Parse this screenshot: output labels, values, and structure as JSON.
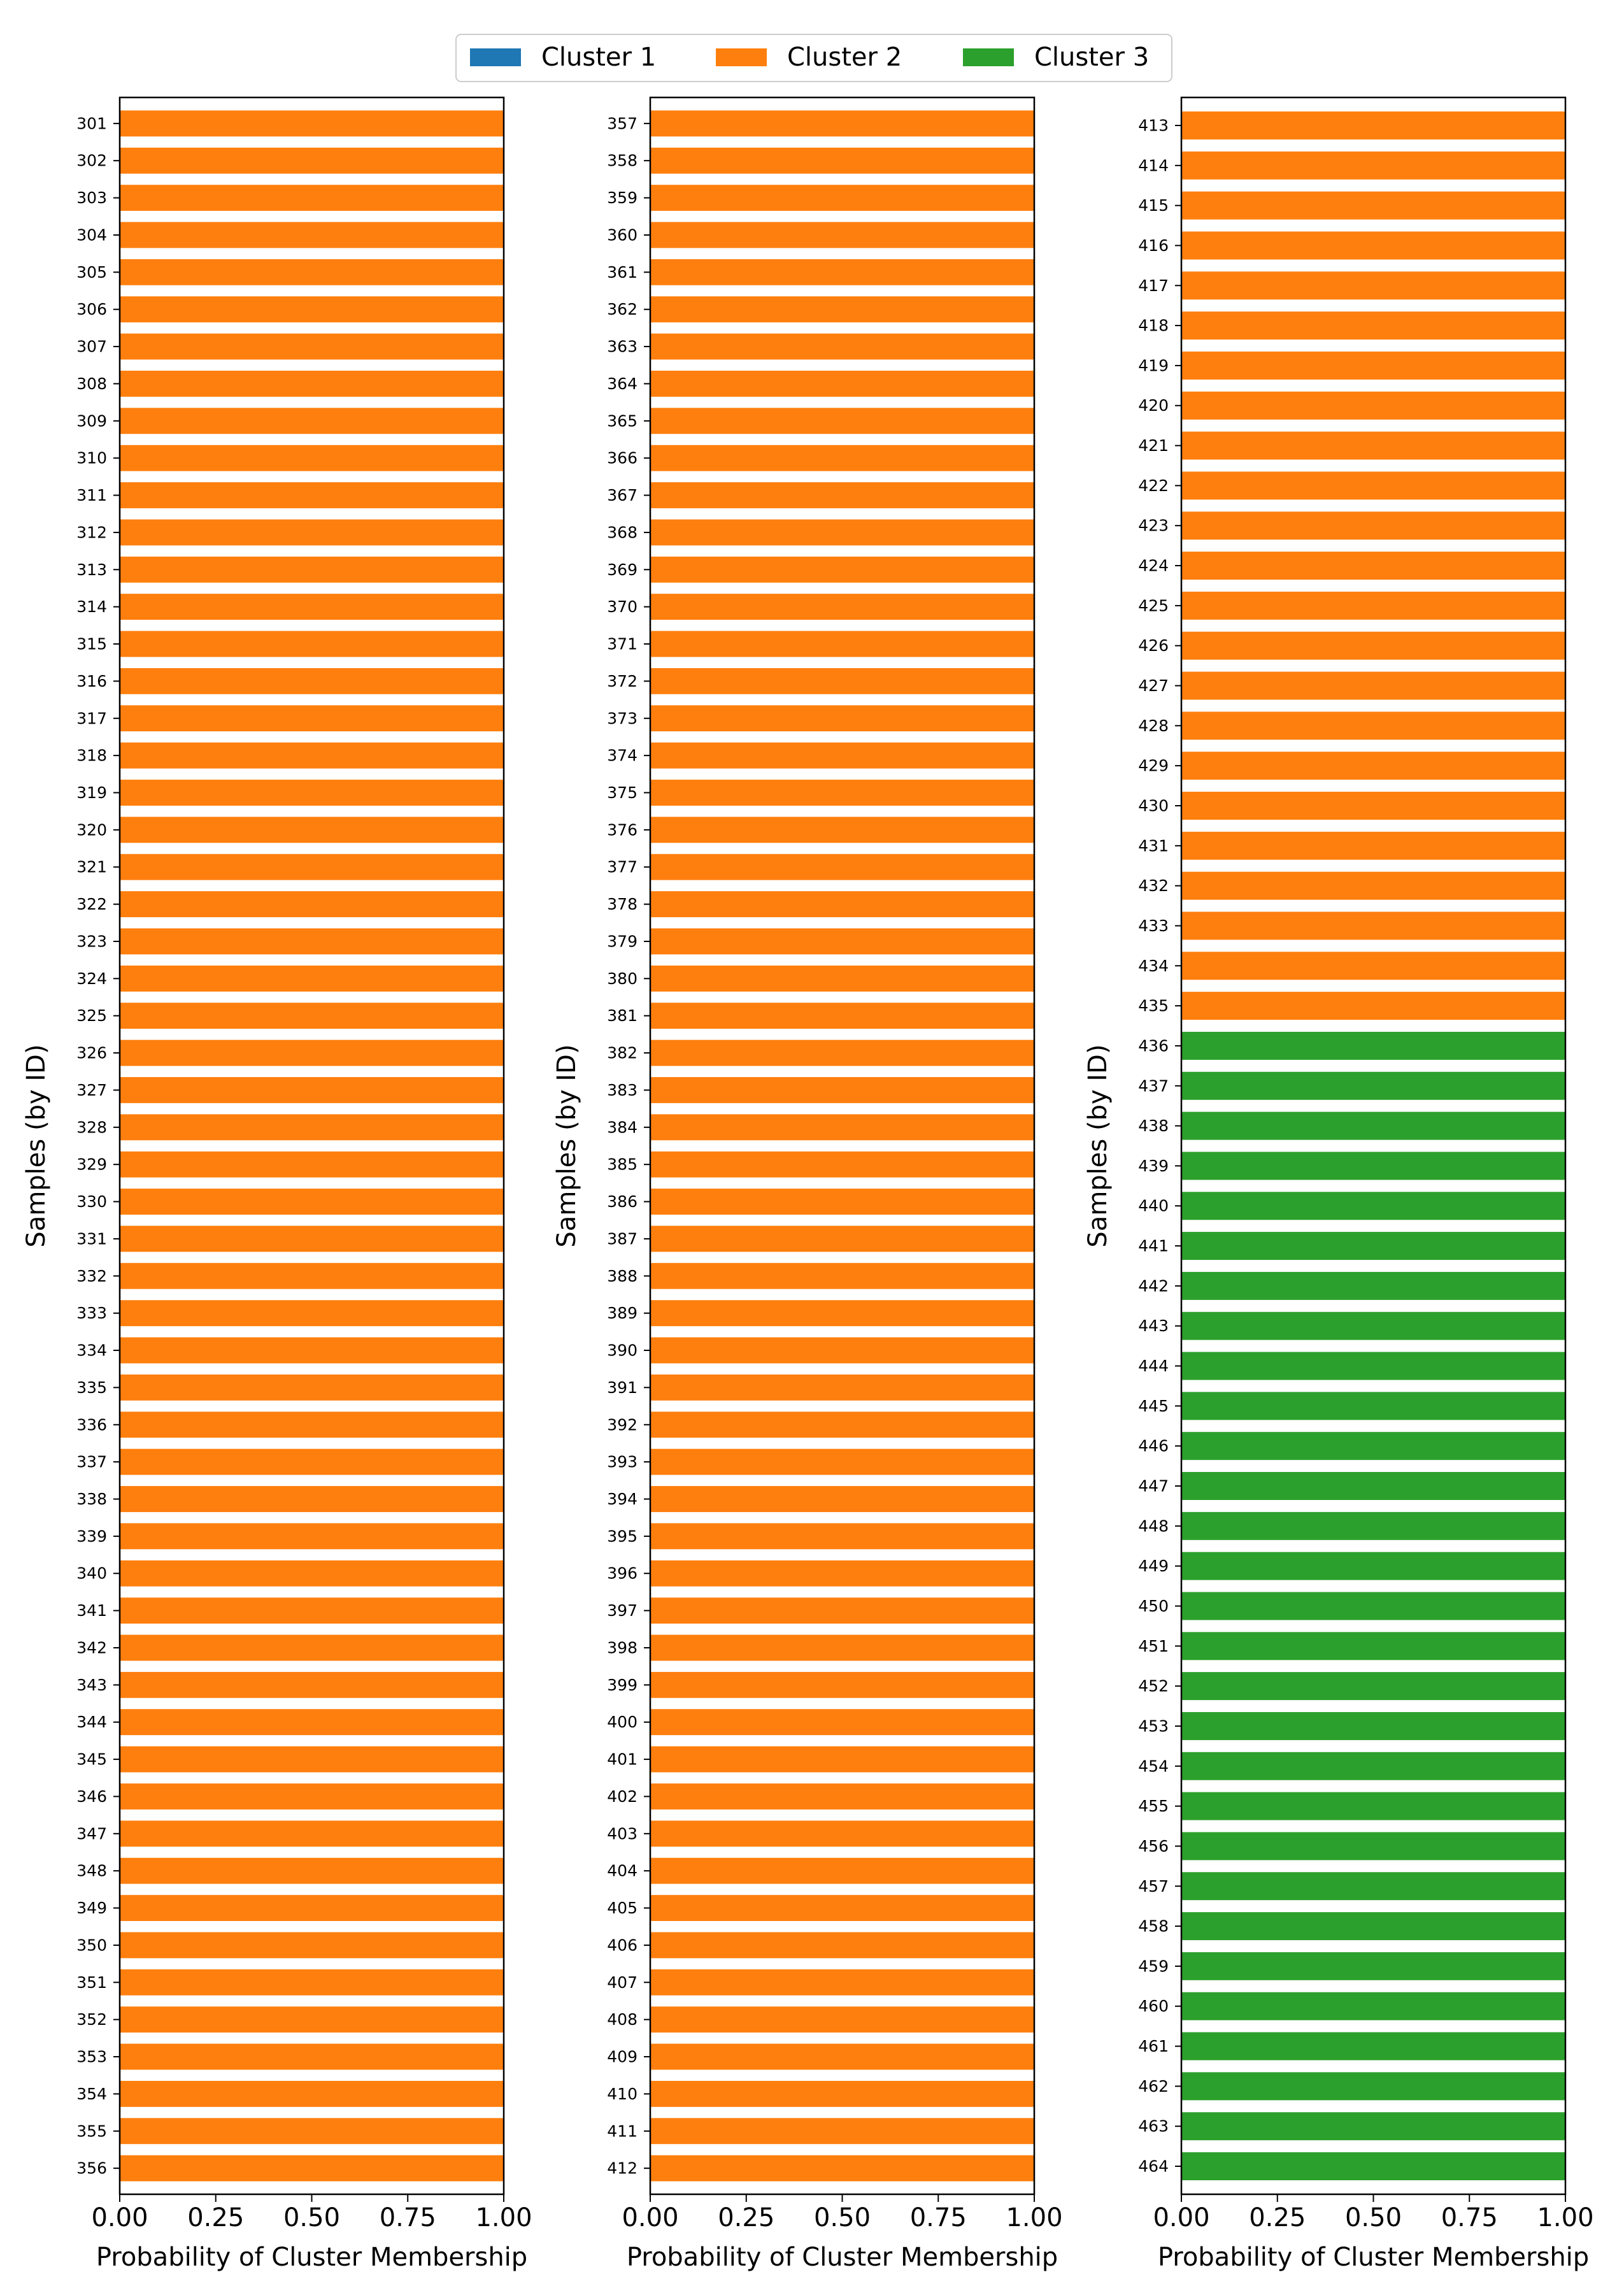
{
  "chart_data": {
    "type": "bar",
    "orientation": "horizontal",
    "stacked": true,
    "legend": {
      "placement": "top-center",
      "entries": [
        {
          "name": "Cluster 1",
          "color": "#1f77b4"
        },
        {
          "name": "Cluster 2",
          "color": "#ff7f0e"
        },
        {
          "name": "Cluster 3",
          "color": "#2ca02c"
        }
      ]
    },
    "xlim": [
      0,
      1
    ],
    "x_ticks": [
      "0.00",
      "0.25",
      "0.50",
      "0.75",
      "1.00"
    ],
    "panels": [
      {
        "xlabel": "Probability of Cluster Membership",
        "ylabel": "Samples (by ID)",
        "samples": [
          "301",
          "302",
          "303",
          "304",
          "305",
          "306",
          "307",
          "308",
          "309",
          "310",
          "311",
          "312",
          "313",
          "314",
          "315",
          "316",
          "317",
          "318",
          "319",
          "320",
          "321",
          "322",
          "323",
          "324",
          "325",
          "326",
          "327",
          "328",
          "329",
          "330",
          "331",
          "332",
          "333",
          "334",
          "335",
          "336",
          "337",
          "338",
          "339",
          "340",
          "341",
          "342",
          "343",
          "344",
          "345",
          "346",
          "347",
          "348",
          "349",
          "350",
          "351",
          "352",
          "353",
          "354",
          "355",
          "356"
        ],
        "series": [
          {
            "name": "Cluster 1",
            "values": [
              0,
              0,
              0,
              0,
              0,
              0,
              0,
              0,
              0,
              0,
              0,
              0,
              0,
              0,
              0,
              0,
              0,
              0,
              0,
              0,
              0,
              0,
              0,
              0,
              0,
              0,
              0,
              0,
              0,
              0,
              0,
              0,
              0,
              0,
              0,
              0,
              0,
              0,
              0,
              0,
              0,
              0,
              0,
              0,
              0,
              0,
              0,
              0,
              0,
              0,
              0,
              0,
              0,
              0,
              0,
              0
            ]
          },
          {
            "name": "Cluster 2",
            "values": [
              1,
              1,
              1,
              1,
              1,
              1,
              1,
              1,
              1,
              1,
              1,
              1,
              1,
              1,
              1,
              1,
              1,
              1,
              1,
              1,
              1,
              1,
              1,
              1,
              1,
              1,
              1,
              1,
              1,
              1,
              1,
              1,
              1,
              1,
              1,
              1,
              1,
              1,
              1,
              1,
              1,
              1,
              1,
              1,
              1,
              1,
              1,
              1,
              1,
              1,
              1,
              1,
              1,
              1,
              1,
              1
            ]
          },
          {
            "name": "Cluster 3",
            "values": [
              0,
              0,
              0,
              0,
              0,
              0,
              0,
              0,
              0,
              0,
              0,
              0,
              0,
              0,
              0,
              0,
              0,
              0,
              0,
              0,
              0,
              0,
              0,
              0,
              0,
              0,
              0,
              0,
              0,
              0,
              0,
              0,
              0,
              0,
              0,
              0,
              0,
              0,
              0,
              0,
              0,
              0,
              0,
              0,
              0,
              0,
              0,
              0,
              0,
              0,
              0,
              0,
              0,
              0,
              0,
              0
            ]
          }
        ]
      },
      {
        "xlabel": "Probability of Cluster Membership",
        "ylabel": "Samples (by ID)",
        "samples": [
          "357",
          "358",
          "359",
          "360",
          "361",
          "362",
          "363",
          "364",
          "365",
          "366",
          "367",
          "368",
          "369",
          "370",
          "371",
          "372",
          "373",
          "374",
          "375",
          "376",
          "377",
          "378",
          "379",
          "380",
          "381",
          "382",
          "383",
          "384",
          "385",
          "386",
          "387",
          "388",
          "389",
          "390",
          "391",
          "392",
          "393",
          "394",
          "395",
          "396",
          "397",
          "398",
          "399",
          "400",
          "401",
          "402",
          "403",
          "404",
          "405",
          "406",
          "407",
          "408",
          "409",
          "410",
          "411",
          "412"
        ],
        "series": [
          {
            "name": "Cluster 1",
            "values": [
              0,
              0,
              0,
              0,
              0,
              0,
              0,
              0,
              0,
              0,
              0,
              0,
              0,
              0,
              0,
              0,
              0,
              0,
              0,
              0,
              0,
              0,
              0,
              0,
              0,
              0,
              0,
              0,
              0,
              0,
              0,
              0,
              0,
              0,
              0,
              0,
              0,
              0,
              0,
              0,
              0,
              0,
              0,
              0,
              0,
              0,
              0,
              0,
              0,
              0,
              0,
              0,
              0,
              0,
              0,
              0
            ]
          },
          {
            "name": "Cluster 2",
            "values": [
              1,
              1,
              1,
              1,
              1,
              1,
              1,
              1,
              1,
              1,
              1,
              1,
              1,
              1,
              1,
              1,
              1,
              1,
              1,
              1,
              1,
              1,
              1,
              1,
              1,
              1,
              1,
              1,
              1,
              1,
              1,
              1,
              1,
              1,
              1,
              1,
              1,
              1,
              1,
              1,
              1,
              1,
              1,
              1,
              1,
              1,
              1,
              1,
              1,
              1,
              1,
              1,
              1,
              1,
              1,
              1
            ]
          },
          {
            "name": "Cluster 3",
            "values": [
              0,
              0,
              0,
              0,
              0,
              0,
              0,
              0,
              0,
              0,
              0,
              0,
              0,
              0,
              0,
              0,
              0,
              0,
              0,
              0,
              0,
              0,
              0,
              0,
              0,
              0,
              0,
              0,
              0,
              0,
              0,
              0,
              0,
              0,
              0,
              0,
              0,
              0,
              0,
              0,
              0,
              0,
              0,
              0,
              0,
              0,
              0,
              0,
              0,
              0,
              0,
              0,
              0,
              0,
              0,
              0
            ]
          }
        ]
      },
      {
        "xlabel": "Probability of Cluster Membership",
        "ylabel": "Samples (by ID)",
        "samples": [
          "413",
          "414",
          "415",
          "416",
          "417",
          "418",
          "419",
          "420",
          "421",
          "422",
          "423",
          "424",
          "425",
          "426",
          "427",
          "428",
          "429",
          "430",
          "431",
          "432",
          "433",
          "434",
          "435",
          "436",
          "437",
          "438",
          "439",
          "440",
          "441",
          "442",
          "443",
          "444",
          "445",
          "446",
          "447",
          "448",
          "449",
          "450",
          "451",
          "452",
          "453",
          "454",
          "455",
          "456",
          "457",
          "458",
          "459",
          "460",
          "461",
          "462",
          "463",
          "464"
        ],
        "series": [
          {
            "name": "Cluster 1",
            "values": [
              0,
              0,
              0,
              0,
              0,
              0,
              0,
              0,
              0,
              0,
              0,
              0,
              0,
              0,
              0,
              0,
              0,
              0,
              0,
              0,
              0,
              0,
              0,
              0,
              0,
              0,
              0,
              0,
              0,
              0,
              0,
              0,
              0,
              0,
              0,
              0,
              0,
              0,
              0,
              0,
              0,
              0,
              0,
              0,
              0,
              0,
              0,
              0,
              0,
              0,
              0,
              0
            ]
          },
          {
            "name": "Cluster 2",
            "values": [
              1,
              1,
              1,
              1,
              1,
              1,
              1,
              1,
              1,
              1,
              1,
              1,
              1,
              1,
              1,
              1,
              1,
              1,
              1,
              1,
              1,
              1,
              1,
              0,
              0,
              0,
              0,
              0,
              0,
              0,
              0,
              0,
              0,
              0,
              0,
              0,
              0,
              0,
              0,
              0,
              0,
              0,
              0,
              0,
              0,
              0,
              0,
              0,
              0,
              0,
              0,
              0
            ]
          },
          {
            "name": "Cluster 3",
            "values": [
              0,
              0,
              0,
              0,
              0,
              0,
              0,
              0,
              0,
              0,
              0,
              0,
              0,
              0,
              0,
              0,
              0,
              0,
              0,
              0,
              0,
              0,
              0,
              1,
              1,
              1,
              1,
              1,
              1,
              1,
              1,
              1,
              1,
              1,
              1,
              1,
              1,
              1,
              1,
              1,
              1,
              1,
              1,
              1,
              1,
              1,
              1,
              1,
              1,
              1,
              1,
              1
            ]
          }
        ]
      }
    ]
  }
}
